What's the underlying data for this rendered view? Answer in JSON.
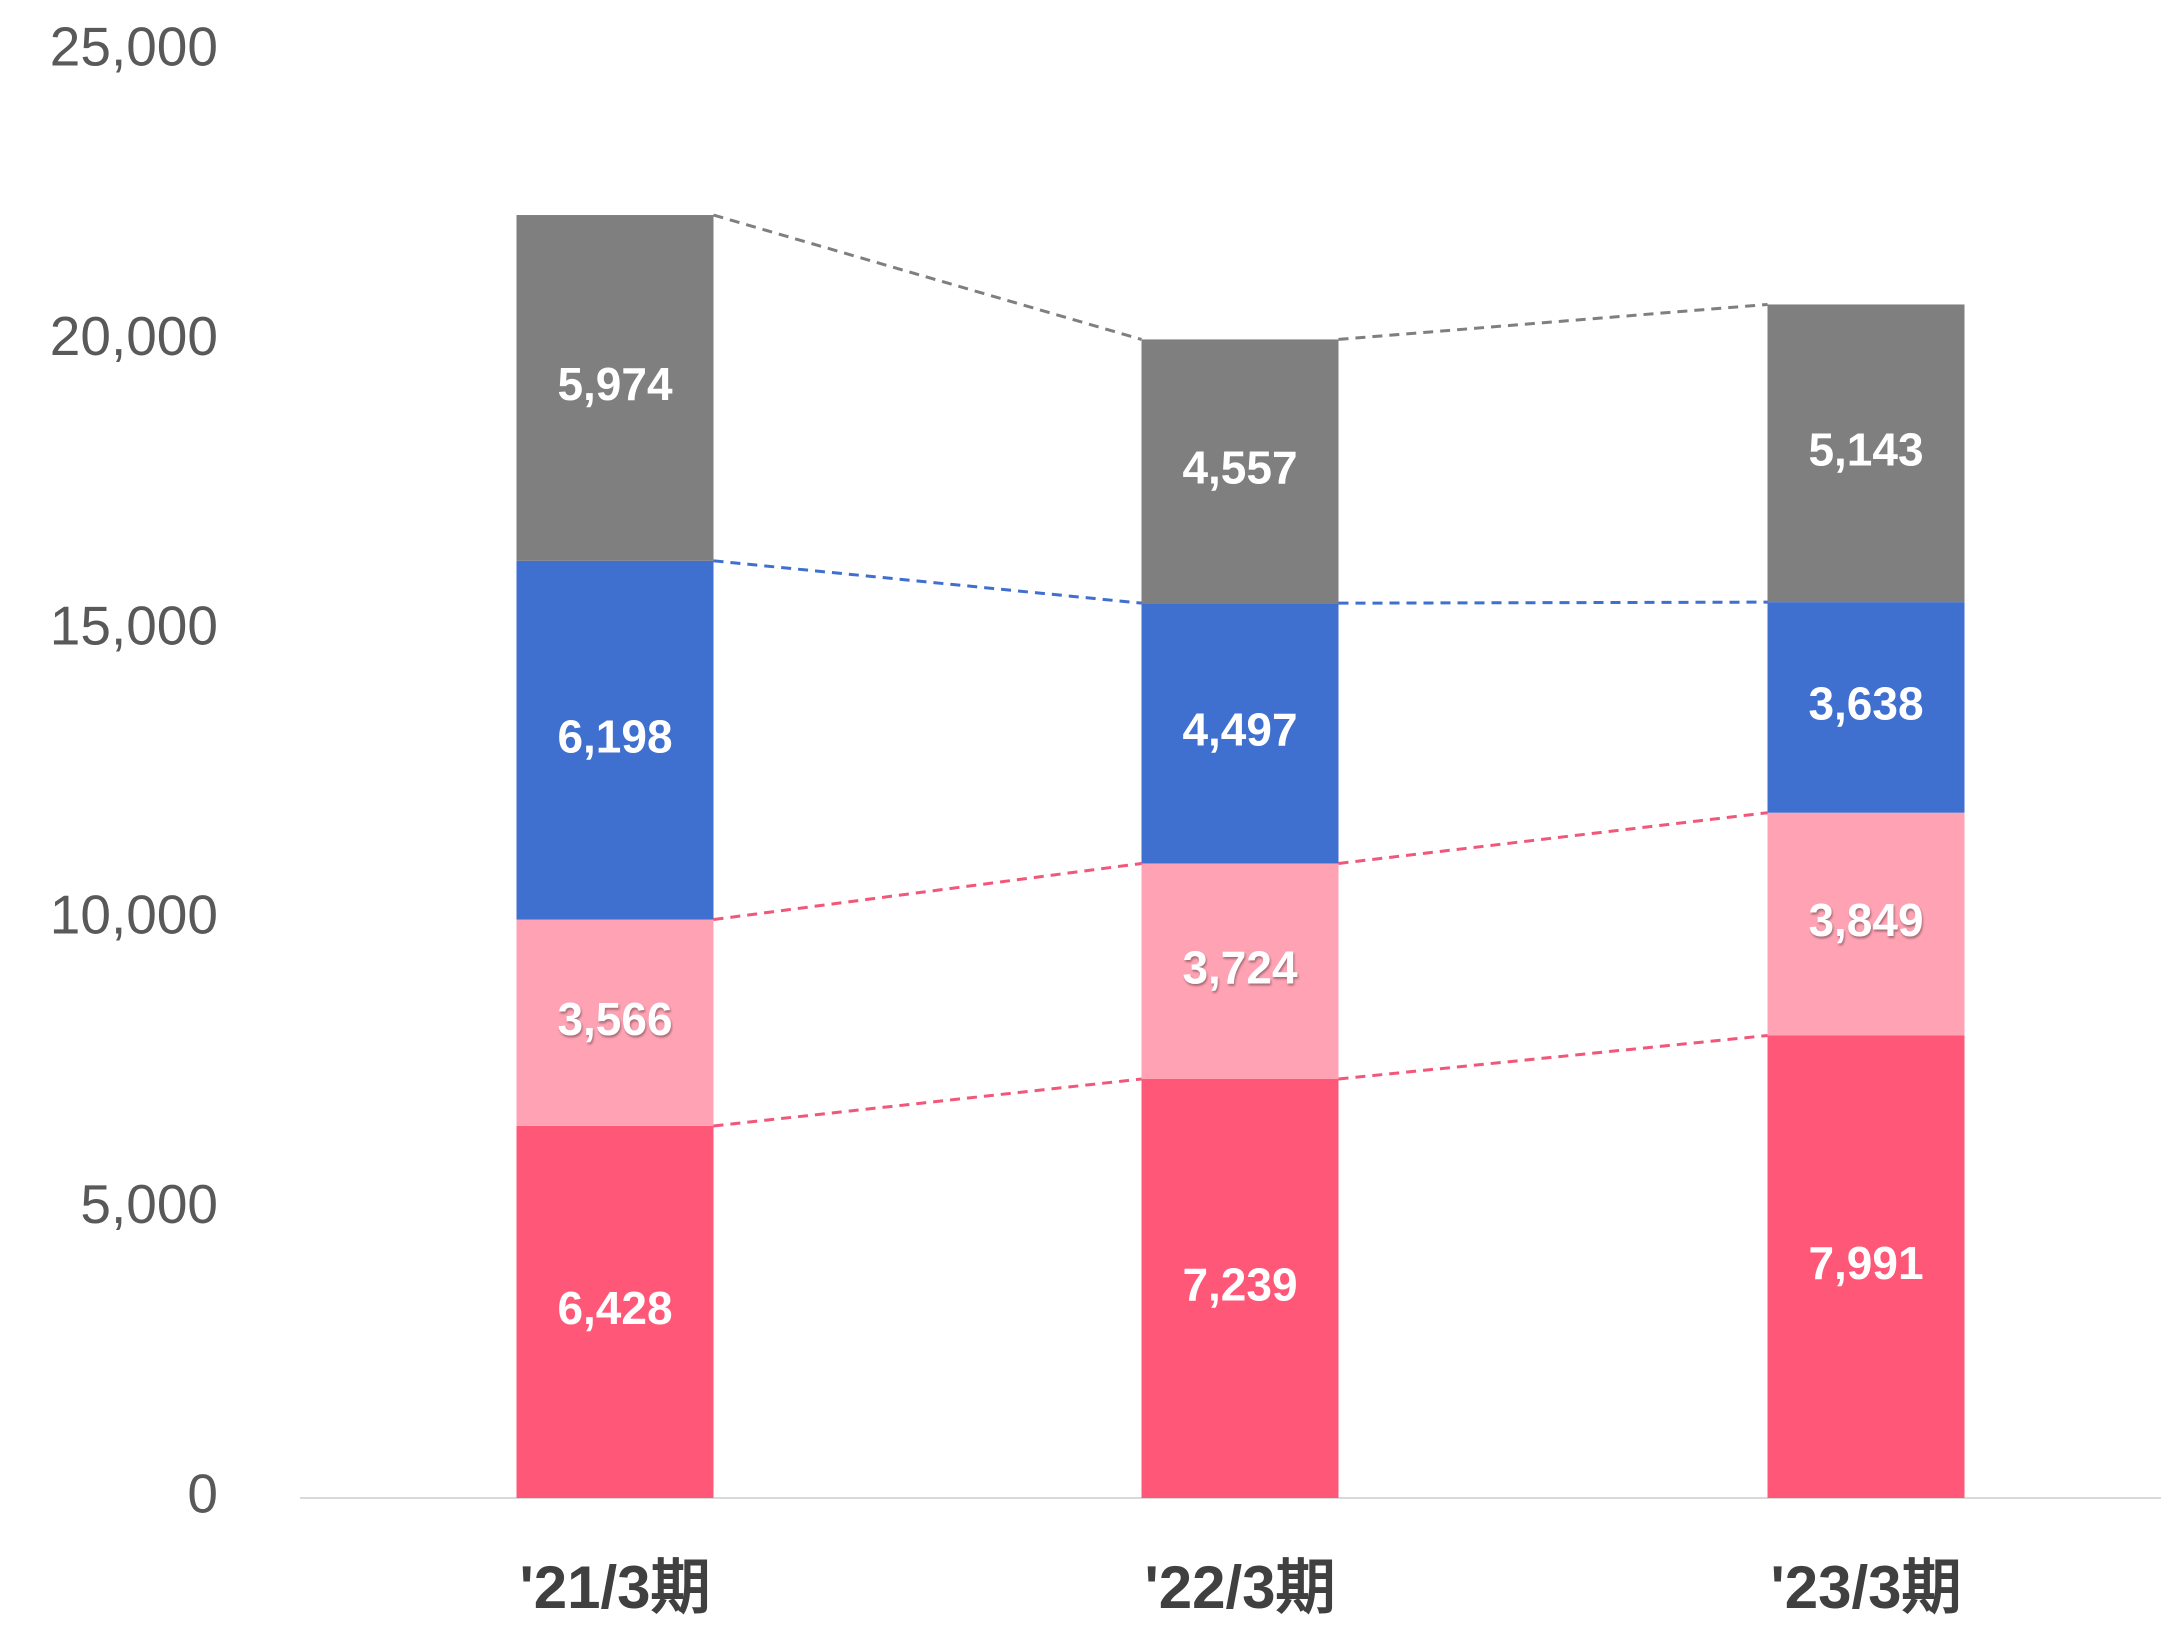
{
  "chart_data": {
    "type": "bar",
    "stacked": true,
    "categories": [
      "'21/3期",
      "'22/3期",
      "'23/3期"
    ],
    "series": [
      {
        "color": "#ff5777",
        "connector_color": "#f2577a",
        "values": [
          6428,
          7239,
          7991
        ],
        "value_labels": [
          "6,428",
          "7,239",
          "7,991"
        ]
      },
      {
        "color": "#ffa3b4",
        "connector_color": "#f2577a",
        "values": [
          3566,
          3724,
          3849
        ],
        "value_labels": [
          "3,566",
          "3,724",
          "3,849"
        ]
      },
      {
        "color": "#3f6fcf",
        "connector_color": "#3f6fcf",
        "values": [
          6198,
          4497,
          3638
        ],
        "value_labels": [
          "6,198",
          "4,497",
          "3,638"
        ]
      },
      {
        "color": "#7f7f7f",
        "connector_color": "#7f7f7f",
        "values": [
          5974,
          4557,
          5143
        ],
        "value_labels": [
          "5,974",
          "4,557",
          "5,143"
        ]
      }
    ],
    "ylim": [
      0,
      25000
    ],
    "yticks": [
      0,
      {
        "value": 5000,
        "label": "5,000"
      },
      {
        "value": 10000,
        "label": "10,000"
      },
      {
        "value": 15000,
        "label": "15,000"
      },
      {
        "value": 20000,
        "label": "20,000"
      },
      {
        "value": 25000,
        "label": "25,000"
      }
    ],
    "grid": false
  }
}
